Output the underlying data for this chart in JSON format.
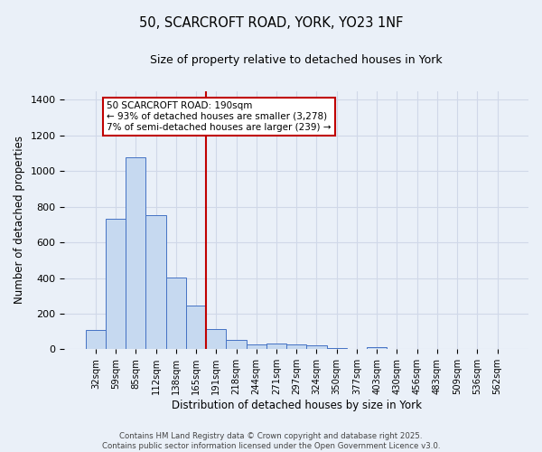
{
  "title1": "50, SCARCROFT ROAD, YORK, YO23 1NF",
  "title2": "Size of property relative to detached houses in York",
  "xlabel": "Distribution of detached houses by size in York",
  "ylabel": "Number of detached properties",
  "categories": [
    "32sqm",
    "59sqm",
    "85sqm",
    "112sqm",
    "138sqm",
    "165sqm",
    "191sqm",
    "218sqm",
    "244sqm",
    "271sqm",
    "297sqm",
    "324sqm",
    "350sqm",
    "377sqm",
    "403sqm",
    "430sqm",
    "456sqm",
    "483sqm",
    "509sqm",
    "536sqm",
    "562sqm"
  ],
  "values": [
    110,
    730,
    1075,
    755,
    405,
    245,
    115,
    50,
    25,
    30,
    28,
    20,
    8,
    0,
    10,
    0,
    0,
    0,
    0,
    0,
    0
  ],
  "bar_color": "#c6d9f0",
  "bar_edge_color": "#4472c4",
  "grid_color": "#d0d8e8",
  "bg_color": "#eaf0f8",
  "vline_x_idx": 6,
  "vline_color": "#c00000",
  "annotation_text": "50 SCARCROFT ROAD: 190sqm\n← 93% of detached houses are smaller (3,278)\n7% of semi-detached houses are larger (239) →",
  "annotation_box_color": "#ffffff",
  "annotation_box_edge_color": "#c00000",
  "footer_line1": "Contains HM Land Registry data © Crown copyright and database right 2025.",
  "footer_line2": "Contains public sector information licensed under the Open Government Licence v3.0.",
  "ylim": [
    0,
    1450
  ],
  "yticks": [
    0,
    200,
    400,
    600,
    800,
    1000,
    1200,
    1400
  ]
}
